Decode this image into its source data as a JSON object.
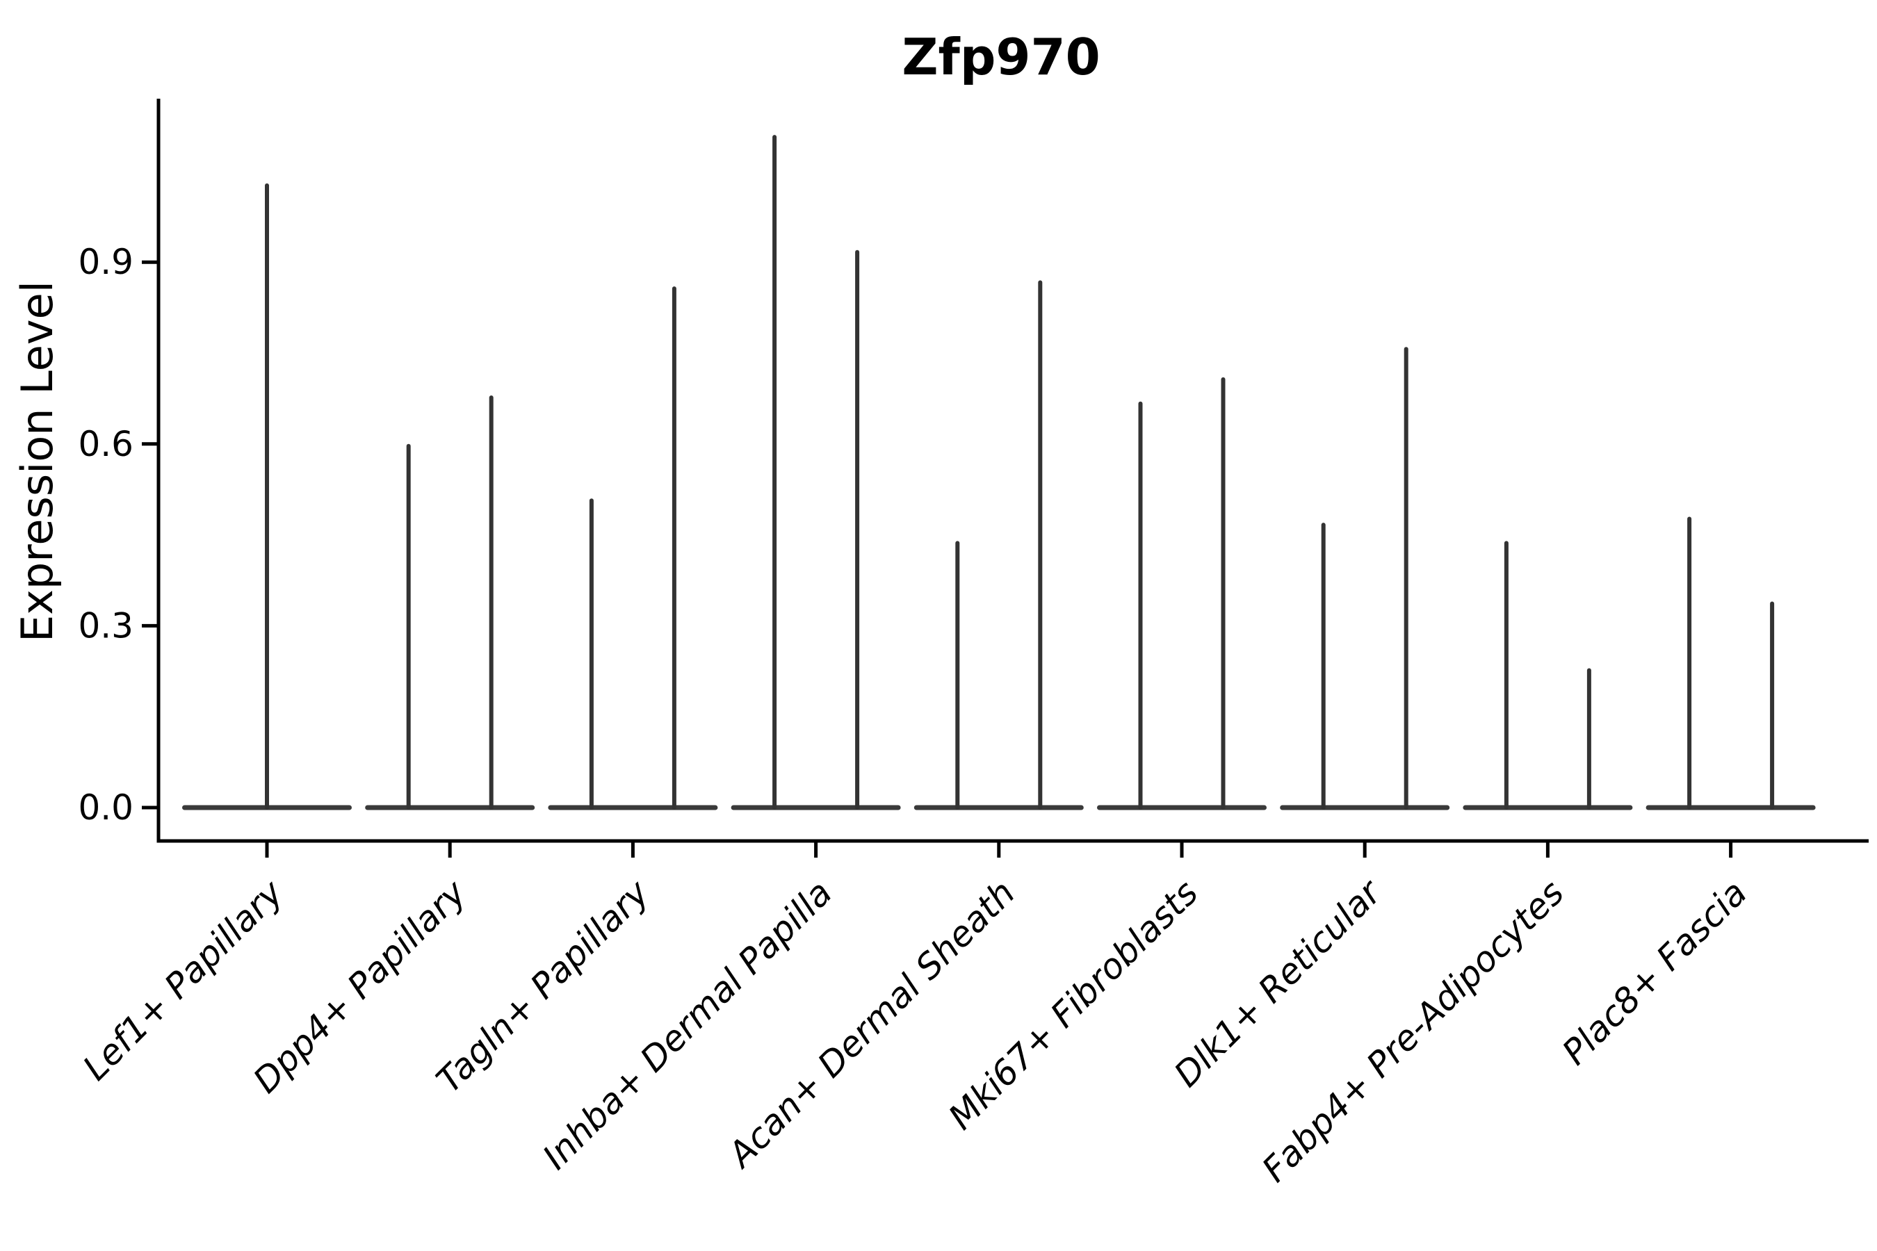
{
  "chart_data": {
    "type": "violin",
    "title": "Zfp970",
    "ylabel": "Expression Level",
    "xlabel": "",
    "ylim": [
      0.0,
      1.17
    ],
    "yticks": [
      0.0,
      0.3,
      0.6,
      0.9
    ],
    "ytick_labels": [
      "0.0",
      "0.3",
      "0.6",
      "0.9"
    ],
    "grid": "off",
    "legend": "none",
    "categories": [
      "Lef1+ Papillary",
      "Dpp4+ Papillary",
      "Tagln+ Papillary",
      "Inhba+ Dermal Papilla",
      "Acan+ Dermal Sheath",
      "Mki67+ Fibroblasts",
      "Dlk1+ Reticular",
      "Fabp4+ Pre-Adipocytes",
      "Plac8+ Fascia"
    ],
    "series": [
      {
        "category": "Lef1+ Papillary",
        "spike_maxima": [
          1.03
        ]
      },
      {
        "category": "Dpp4+ Papillary",
        "spike_maxima": [
          0.6,
          0.68
        ]
      },
      {
        "category": "Tagln+ Papillary",
        "spike_maxima": [
          0.51,
          0.86
        ]
      },
      {
        "category": "Inhba+ Dermal Papilla",
        "spike_maxima": [
          1.11,
          0.92
        ]
      },
      {
        "category": "Acan+ Dermal Sheath",
        "spike_maxima": [
          0.44,
          0.87
        ]
      },
      {
        "category": "Mki67+ Fibroblasts",
        "spike_maxima": [
          0.67,
          0.71
        ]
      },
      {
        "category": "Dlk1+ Reticular",
        "spike_maxima": [
          0.47,
          0.76
        ]
      },
      {
        "category": "Fabp4+ Pre-Adipocytes",
        "spike_maxima": [
          0.44,
          0.23
        ]
      },
      {
        "category": "Plac8+ Fascia",
        "spike_maxima": [
          0.48,
          0.34
        ]
      }
    ],
    "baseline_value": 0.0,
    "violin_shape_note": "each violin collapses to a flat base at 0 with a thin density spike up to its maximum",
    "colors": {
      "violin_stroke": "#333333",
      "violin_base": "#3a3a3a",
      "axis": "#000000",
      "text": "#000000",
      "background": "#ffffff"
    }
  }
}
